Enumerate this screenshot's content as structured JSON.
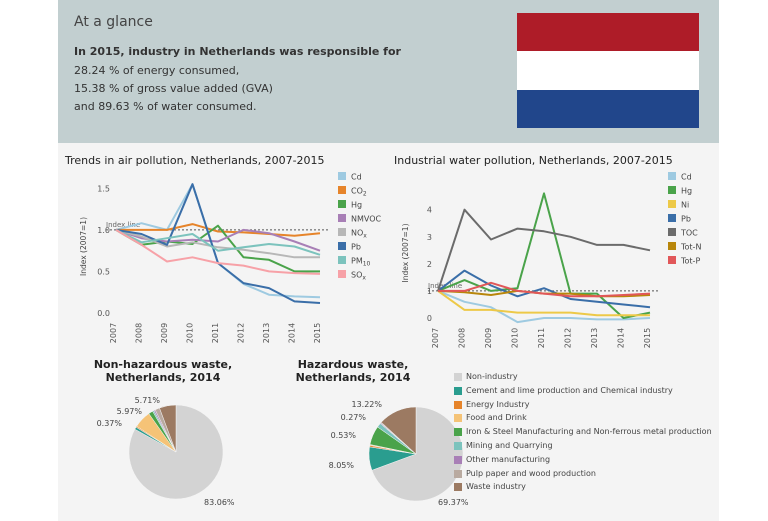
{
  "glance": {
    "title": "At a glance",
    "line1": "In 2015, industry in Netherlands was responsible for",
    "line2": "28.24 % of energy consumed,",
    "line3": "15.38 % of gross value added (GVA)",
    "line4": "and 89.63 % of water consumed.",
    "flag_colors": [
      "#ae1c28",
      "#ffffff",
      "#21468b"
    ]
  },
  "chart_data": [
    {
      "type": "line",
      "title": "Trends in air pollution, Netherlands, 2007-2015",
      "ylabel": "Index (2007=1)",
      "x": [
        "2007",
        "2008",
        "2009",
        "2010",
        "2011",
        "2012",
        "2013",
        "2014",
        "2015"
      ],
      "ylim": [
        0,
        1.6
      ],
      "yticks": [
        "0.0",
        "0.5",
        "1.0",
        "1.5"
      ],
      "reference_line": {
        "value": 1.0,
        "label": "Index line"
      },
      "series": [
        {
          "name": "Cd",
          "color": "#9ecae1",
          "values": [
            1.0,
            1.08,
            1.0,
            1.55,
            0.6,
            0.35,
            0.22,
            0.2,
            0.19
          ]
        },
        {
          "name": "CO2",
          "color": "#e6842a",
          "values": [
            1.0,
            1.0,
            1.0,
            1.07,
            0.98,
            0.97,
            0.95,
            0.93,
            0.96
          ]
        },
        {
          "name": "Hg",
          "color": "#4aa34a",
          "values": [
            1.0,
            0.82,
            0.86,
            0.83,
            1.05,
            0.67,
            0.64,
            0.5,
            0.5
          ]
        },
        {
          "name": "NMVOC",
          "color": "#a87fb6",
          "values": [
            1.0,
            0.9,
            0.86,
            0.88,
            0.86,
            1.0,
            0.96,
            0.86,
            0.75
          ]
        },
        {
          "name": "NOx",
          "color": "#b7b7b7",
          "values": [
            1.0,
            0.92,
            0.8,
            0.85,
            0.79,
            0.76,
            0.72,
            0.67,
            0.67
          ]
        },
        {
          "name": "Pb",
          "color": "#3a6ea8",
          "values": [
            1.0,
            0.95,
            0.82,
            1.55,
            0.6,
            0.36,
            0.3,
            0.14,
            0.12
          ]
        },
        {
          "name": "PM10",
          "color": "#7cc3bd",
          "values": [
            1.0,
            0.85,
            0.9,
            0.95,
            0.75,
            0.79,
            0.83,
            0.8,
            0.7
          ]
        },
        {
          "name": "SOx",
          "color": "#f7a1a7",
          "values": [
            1.0,
            0.82,
            0.62,
            0.67,
            0.6,
            0.57,
            0.5,
            0.48,
            0.47
          ]
        }
      ]
    },
    {
      "type": "line",
      "title": "Industrial water pollution, Netherlands, 2007-2015",
      "ylabel": "Index (2007=1)",
      "x": [
        "2007",
        "2008",
        "2009",
        "2010",
        "2011",
        "2012",
        "2013",
        "2014",
        "2015"
      ],
      "ylim": [
        0,
        4.8
      ],
      "yticks": [
        "0",
        "1",
        "2",
        "3",
        "4"
      ],
      "reference_line": {
        "value": 1.0,
        "label": "Index line"
      },
      "series": [
        {
          "name": "Cd",
          "color": "#9ecae1",
          "values": [
            1.0,
            0.6,
            0.4,
            -0.15,
            0.0,
            0.0,
            -0.05,
            -0.05,
            0.0
          ]
        },
        {
          "name": "Hg",
          "color": "#4aa34a",
          "values": [
            1.0,
            1.4,
            1.0,
            1.1,
            4.6,
            0.9,
            0.9,
            0.0,
            0.2
          ]
        },
        {
          "name": "Ni",
          "color": "#edc948",
          "values": [
            1.0,
            0.3,
            0.3,
            0.2,
            0.2,
            0.2,
            0.1,
            0.1,
            0.1
          ]
        },
        {
          "name": "Pb",
          "color": "#3a6ea8",
          "values": [
            1.0,
            1.75,
            1.2,
            0.8,
            1.1,
            0.7,
            0.6,
            0.5,
            0.4
          ]
        },
        {
          "name": "TOC",
          "color": "#6b6b6b",
          "values": [
            1.0,
            4.0,
            2.9,
            3.3,
            3.2,
            3.0,
            2.7,
            2.7,
            2.5
          ]
        },
        {
          "name": "Tot-N",
          "color": "#b8860b",
          "values": [
            1.0,
            0.95,
            0.85,
            1.0,
            0.9,
            0.9,
            0.8,
            0.8,
            0.85
          ]
        },
        {
          "name": "Tot-P",
          "color": "#e15759",
          "values": [
            1.0,
            1.0,
            1.3,
            1.0,
            0.9,
            0.8,
            0.8,
            0.85,
            0.9
          ]
        }
      ]
    },
    {
      "type": "pie",
      "title": "Non-hazardous waste, Netherlands, 2014",
      "slices": [
        {
          "category": "Non-industry",
          "value": 83.06,
          "label": "83.06%"
        },
        {
          "category": "Cement and lime production and Chemical industry",
          "value": 0.8,
          "label": ""
        },
        {
          "category": "Energy Industry",
          "value": 0.37,
          "label": "0.37%"
        },
        {
          "category": "Food and Drink",
          "value": 5.97,
          "label": "5.97%"
        },
        {
          "category": "Iron & Steel Manufacturing and Non-ferrous metal production",
          "value": 1.5,
          "label": ""
        },
        {
          "category": "Mining and Quarrying",
          "value": 0.5,
          "label": ""
        },
        {
          "category": "Other manufacturing",
          "value": 0.5,
          "label": ""
        },
        {
          "category": "Pulp paper and wood production",
          "value": 1.59,
          "label": ""
        },
        {
          "category": "Waste industry",
          "value": 5.71,
          "label": "5.71%"
        }
      ]
    },
    {
      "type": "pie",
      "title": "Hazardous waste, Netherlands, 2014",
      "slices": [
        {
          "category": "Non-industry",
          "value": 69.37,
          "label": "69.37%"
        },
        {
          "category": "Cement and lime production and Chemical industry",
          "value": 8.05,
          "label": "8.05%"
        },
        {
          "category": "Energy Industry",
          "value": 0.53,
          "label": "0.53%"
        },
        {
          "category": "Food and Drink",
          "value": 0.3,
          "label": ""
        },
        {
          "category": "Iron & Steel Manufacturing and Non-ferrous metal production",
          "value": 6.5,
          "label": ""
        },
        {
          "category": "Mining and Quarrying",
          "value": 1.5,
          "label": ""
        },
        {
          "category": "Other manufacturing",
          "value": 0.27,
          "label": "0.27%"
        },
        {
          "category": "Pulp paper and wood production",
          "value": 0.26,
          "label": ""
        },
        {
          "category": "Waste industry",
          "value": 13.22,
          "label": "13.22%"
        }
      ]
    }
  ],
  "waste_legend": [
    {
      "label": "Non-industry",
      "color": "#d3d3d3"
    },
    {
      "label": "Cement and lime production and Chemical industry",
      "color": "#2a9d8f"
    },
    {
      "label": "Energy Industry",
      "color": "#e6842a"
    },
    {
      "label": "Food and Drink",
      "color": "#f5c377"
    },
    {
      "label": "Iron & Steel Manufacturing and Non-ferrous metal production",
      "color": "#4aa34a"
    },
    {
      "label": "Mining and Quarrying",
      "color": "#7cc3bd"
    },
    {
      "label": "Other manufacturing",
      "color": "#a87fb6"
    },
    {
      "label": "Pulp paper and wood production",
      "color": "#b9aaa0"
    },
    {
      "label": "Waste industry",
      "color": "#9c7a62"
    }
  ]
}
